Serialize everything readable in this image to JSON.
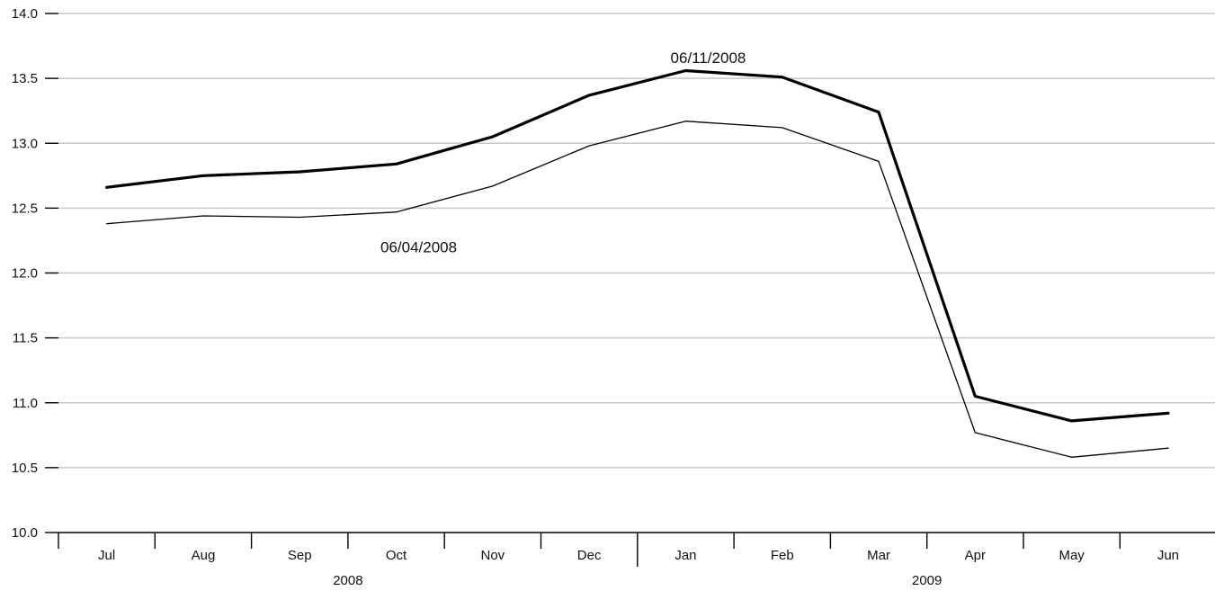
{
  "chart_data": {
    "type": "line",
    "title": "",
    "xlabel": "",
    "ylabel": "",
    "ylim": [
      10.0,
      14.0
    ],
    "yticks": [
      "10.0",
      "10.5",
      "11.0",
      "11.5",
      "12.0",
      "12.5",
      "13.0",
      "13.5",
      "14.0"
    ],
    "grid": true,
    "categories": [
      "Jul",
      "Aug",
      "Sep",
      "Oct",
      "Nov",
      "Dec",
      "Jan",
      "Feb",
      "Mar",
      "Apr",
      "May",
      "Jun"
    ],
    "year_labels": [
      {
        "label": "2008",
        "months": [
          "Jul",
          "Aug",
          "Sep",
          "Oct",
          "Nov",
          "Dec"
        ]
      },
      {
        "label": "2009",
        "months": [
          "Jan",
          "Feb",
          "Mar",
          "Apr",
          "May",
          "Jun"
        ]
      }
    ],
    "series": [
      {
        "style": "thick",
        "annotation": "06/11/2008",
        "values": [
          12.66,
          12.75,
          12.78,
          12.84,
          13.05,
          13.37,
          13.56,
          13.51,
          13.24,
          11.05,
          10.86,
          10.92
        ]
      },
      {
        "style": "thin",
        "annotation": "06/04/2008",
        "values": [
          12.38,
          12.44,
          12.43,
          12.47,
          12.67,
          12.98,
          13.17,
          13.12,
          12.86,
          10.77,
          10.58,
          10.65
        ]
      }
    ],
    "annotations": [
      {
        "text": "06/11/2008",
        "series": 0,
        "x": "Jan",
        "y": 13.66
      },
      {
        "text": "06/04/2008",
        "series": 1,
        "x": "Oct",
        "y": 12.2
      }
    ]
  }
}
